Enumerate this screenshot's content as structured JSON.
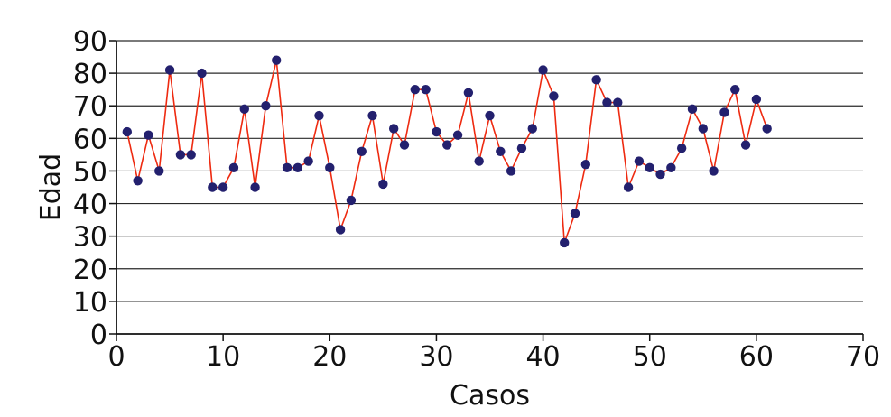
{
  "chart_data": {
    "type": "line",
    "title": "",
    "xlabel": "Casos",
    "ylabel": "Edad",
    "xlim": [
      0,
      70
    ],
    "ylim": [
      0,
      90
    ],
    "x_ticks": [
      0,
      10,
      20,
      30,
      40,
      50,
      60,
      70
    ],
    "y_ticks": [
      0,
      10,
      20,
      30,
      40,
      50,
      60,
      70,
      80,
      90
    ],
    "grid": "horizontal",
    "line_color": "#ee2a10",
    "marker_color": "#23206e",
    "series": [
      {
        "x": [
          1,
          2,
          3,
          4,
          5,
          6,
          7,
          8,
          9,
          10,
          11,
          12,
          13,
          14,
          15,
          16,
          17,
          18,
          19,
          20,
          21,
          22,
          23,
          24,
          25,
          26,
          27,
          28,
          29,
          30,
          31,
          32,
          33,
          34,
          35,
          36,
          37,
          38,
          39,
          40,
          41,
          42,
          43,
          44,
          45,
          46,
          47,
          48,
          49,
          50,
          51,
          52,
          53,
          54,
          55,
          56,
          57,
          58,
          59,
          60,
          61
        ],
        "values": [
          62,
          47,
          61,
          50,
          81,
          55,
          55,
          80,
          45,
          45,
          51,
          69,
          45,
          70,
          84,
          51,
          51,
          53,
          67,
          51,
          32,
          41,
          56,
          67,
          46,
          63,
          58,
          75,
          75,
          62,
          58,
          61,
          74,
          53,
          67,
          56,
          50,
          57,
          63,
          81,
          73,
          28,
          37,
          52,
          78,
          71,
          71,
          45,
          53,
          51,
          49,
          51,
          57,
          69,
          63,
          50,
          68,
          75,
          58,
          72,
          63
        ]
      }
    ]
  }
}
